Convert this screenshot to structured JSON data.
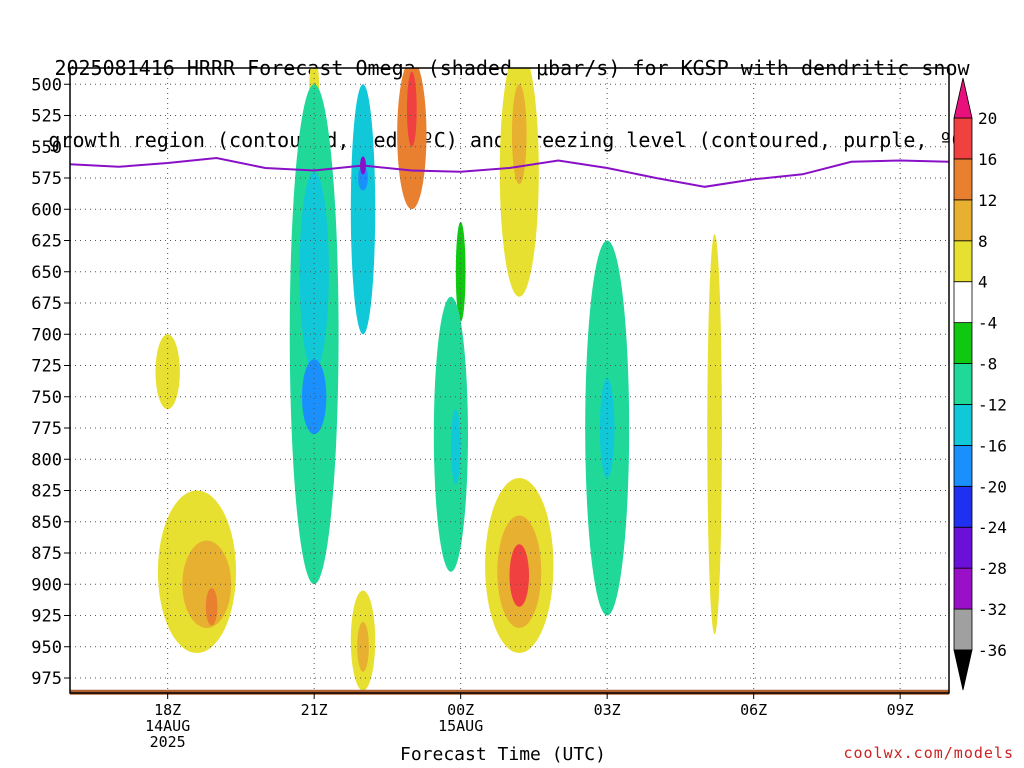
{
  "title": {
    "line1": "2025081416 HRRR Forecast Omega (shaded, μbar/s) for KGSP with dendritic snow",
    "line2": "growth region (contoured, red, ºC) and freezing level (contoured, purple, ºC)"
  },
  "watermark": "coolwx.com/models",
  "chart_data": {
    "type": "heatmap",
    "xlabel": "Forecast Time (UTC)",
    "ylabel": "",
    "x_ticks": [
      {
        "hour": 2,
        "lines": [
          "18Z",
          "14AUG",
          "2025"
        ]
      },
      {
        "hour": 5,
        "lines": [
          "21Z"
        ]
      },
      {
        "hour": 8,
        "lines": [
          "00Z",
          "15AUG"
        ]
      },
      {
        "hour": 11,
        "lines": [
          "03Z"
        ]
      },
      {
        "hour": 14,
        "lines": [
          "06Z"
        ]
      },
      {
        "hour": 17,
        "lines": [
          "09Z"
        ]
      }
    ],
    "xlim_hours": [
      0,
      18
    ],
    "y_ticks": [
      500,
      525,
      550,
      575,
      600,
      625,
      650,
      675,
      700,
      725,
      750,
      775,
      800,
      825,
      850,
      875,
      900,
      925,
      950,
      975
    ],
    "ylim_mb": [
      987,
      487
    ],
    "grid": true,
    "colorbar": {
      "levels": [
        -36,
        -32,
        -28,
        -24,
        -20,
        -16,
        -12,
        -8,
        -4,
        4,
        8,
        12,
        16,
        20
      ],
      "colors": [
        "#000000",
        "#a0a0a0",
        "#9a10c8",
        "#6a10d8",
        "#2030f0",
        "#1a90ff",
        "#10c8d8",
        "#20d898",
        "#10c810",
        "#ffffff",
        "#e8e030",
        "#e8b030",
        "#e88030",
        "#f04040",
        "#e8107a"
      ]
    },
    "omega_features": [
      {
        "x": 5.0,
        "p": 700,
        "rx": 0.5,
        "rp": 200,
        "value": -10
      },
      {
        "x": 5.0,
        "p": 650,
        "rx": 0.3,
        "rp": 80,
        "value": -16
      },
      {
        "x": 5.0,
        "p": 750,
        "rx": 0.25,
        "rp": 30,
        "value": -17
      },
      {
        "x": 6.0,
        "p": 600,
        "rx": 0.25,
        "rp": 100,
        "value": -13
      },
      {
        "x": 6.0,
        "p": 575,
        "rx": 0.1,
        "rp": 10,
        "value": -19
      },
      {
        "x": 7.8,
        "p": 780,
        "rx": 0.35,
        "rp": 110,
        "value": -10
      },
      {
        "x": 7.9,
        "p": 790,
        "rx": 0.1,
        "rp": 30,
        "value": -13
      },
      {
        "x": 8.0,
        "p": 650,
        "rx": 0.1,
        "rp": 40,
        "value": -8
      },
      {
        "x": 11.0,
        "p": 775,
        "rx": 0.45,
        "rp": 150,
        "value": -10
      },
      {
        "x": 11.0,
        "p": 775,
        "rx": 0.15,
        "rp": 40,
        "value": -13
      },
      {
        "x": 7.0,
        "p": 540,
        "rx": 0.3,
        "rp": 60,
        "value": 12
      },
      {
        "x": 7.0,
        "p": 520,
        "rx": 0.1,
        "rp": 30,
        "value": 17
      },
      {
        "x": 9.2,
        "p": 570,
        "rx": 0.4,
        "rp": 100,
        "value": 6
      },
      {
        "x": 9.2,
        "p": 540,
        "rx": 0.15,
        "rp": 40,
        "value": 9
      },
      {
        "x": 5.0,
        "p": 500,
        "rx": 0.1,
        "rp": 20,
        "value": 6
      },
      {
        "x": 9.2,
        "p": 885,
        "rx": 0.7,
        "rp": 70,
        "value": 5
      },
      {
        "x": 9.2,
        "p": 890,
        "rx": 0.45,
        "rp": 45,
        "value": 10
      },
      {
        "x": 9.2,
        "p": 893,
        "rx": 0.2,
        "rp": 25,
        "value": 17
      },
      {
        "x": 2.6,
        "p": 890,
        "rx": 0.8,
        "rp": 65,
        "value": 6
      },
      {
        "x": 2.8,
        "p": 900,
        "rx": 0.5,
        "rp": 35,
        "value": 9
      },
      {
        "x": 2.9,
        "p": 918,
        "rx": 0.12,
        "rp": 15,
        "value": 13
      },
      {
        "x": 2.0,
        "p": 730,
        "rx": 0.25,
        "rp": 30,
        "value": 5
      },
      {
        "x": 6.0,
        "p": 945,
        "rx": 0.25,
        "rp": 40,
        "value": 6
      },
      {
        "x": 6.0,
        "p": 950,
        "rx": 0.12,
        "rp": 20,
        "value": 10
      },
      {
        "x": 13.2,
        "p": 780,
        "rx": 0.15,
        "rp": 160,
        "value": 5
      }
    ],
    "freezing_level": {
      "color": "#8a10c8",
      "points": [
        [
          0,
          564
        ],
        [
          1,
          566
        ],
        [
          2,
          563
        ],
        [
          3,
          559
        ],
        [
          4,
          567
        ],
        [
          5,
          569
        ],
        [
          6,
          565
        ],
        [
          7,
          569
        ],
        [
          8,
          570
        ],
        [
          9,
          567
        ],
        [
          10,
          561
        ],
        [
          11,
          567
        ],
        [
          12,
          575
        ],
        [
          13,
          582
        ],
        [
          14,
          576
        ],
        [
          15,
          572
        ],
        [
          16,
          562
        ],
        [
          17,
          561
        ],
        [
          18,
          562
        ]
      ]
    },
    "dgz_marker": {
      "x": 6.0,
      "p": 565,
      "color": "#8a10c8"
    },
    "ground": {
      "color": "#b06030",
      "p": 982
    }
  }
}
